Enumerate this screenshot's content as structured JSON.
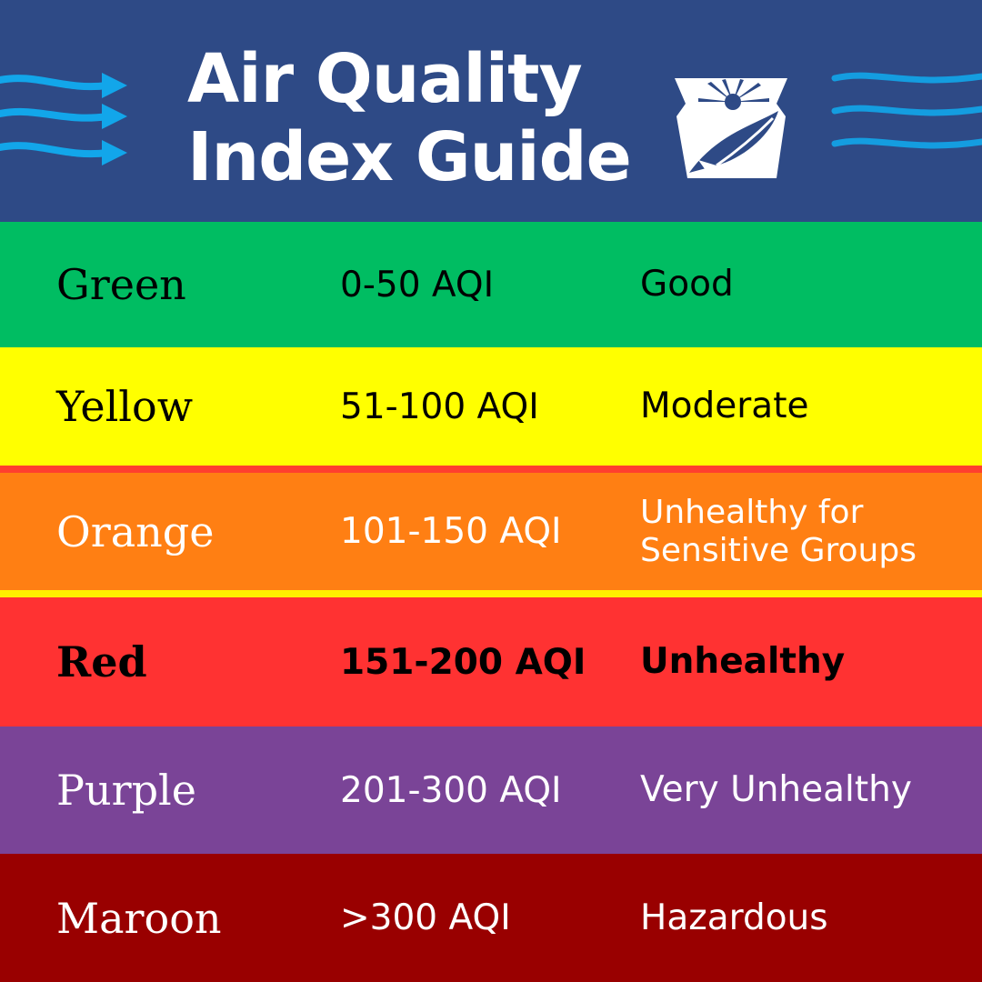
{
  "header": {
    "title_line1": "Air Quality",
    "title_line2": "Index Guide",
    "icons": [
      "wind-arrows-icon",
      "keystone-logo-icon",
      "wind-waves-icon"
    ]
  },
  "rows": [
    {
      "color_name": "Green",
      "range": "0-50 AQI",
      "level_line1": "Good",
      "level_line2": "",
      "bg": "#00bd62",
      "text_color": "#000000"
    },
    {
      "color_name": "Yellow",
      "range": "51-100 AQI",
      "level_line1": "Moderate",
      "level_line2": "",
      "bg": "#ffff00",
      "text_color": "#000000"
    },
    {
      "color_name": "Orange",
      "range": "101-150 AQI",
      "level_line1": "Unhealthy for",
      "level_line2": "Sensitive Groups",
      "bg": "#ff7f13",
      "text_color": "#ffffff"
    },
    {
      "color_name": "Red",
      "range": "151-200 AQI",
      "level_line1": "Unhealthy",
      "level_line2": "",
      "bg": "#ff3232",
      "text_color": "#000000"
    },
    {
      "color_name": "Purple",
      "range": "201-300 AQI",
      "level_line1": "Very Unhealthy",
      "level_line2": "",
      "bg": "#7a4497",
      "text_color": "#ffffff"
    },
    {
      "color_name": "Maroon",
      "range": ">300 AQI",
      "level_line1": "Hazardous",
      "level_line2": "",
      "bg": "#990000",
      "text_color": "#ffffff"
    }
  ],
  "colors": {
    "header_bg": "#2e4a86",
    "accent_blue": "#12a6ea"
  }
}
